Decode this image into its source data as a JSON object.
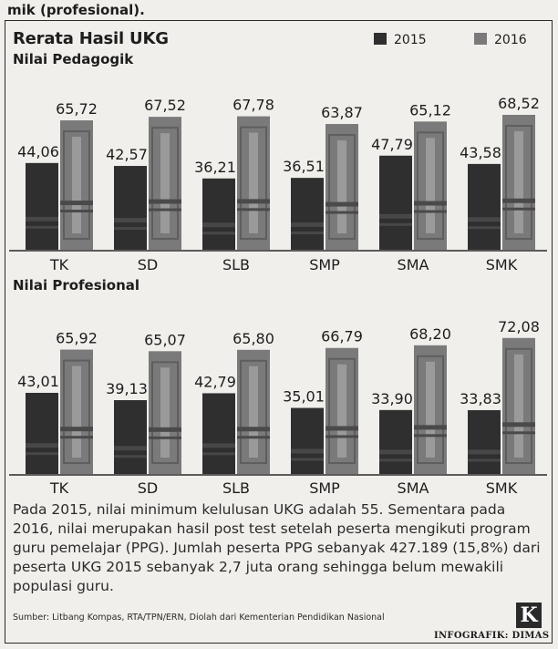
{
  "header": {
    "fragment": "mik (profesional).",
    "title": "Rerata Hasil UKG",
    "legend_2015": "2015",
    "legend_2016": "2016"
  },
  "colors": {
    "bar_2015": "#2f2f2f",
    "bar_2016": "#7a7a7a",
    "background": "#f1efeb"
  },
  "chart_data": [
    {
      "type": "bar",
      "title": "Nilai Pedagogik",
      "categories": [
        "TK",
        "SD",
        "SLB",
        "SMP",
        "SMA",
        "SMK"
      ],
      "series": [
        {
          "name": "2015",
          "values": [
            "44,06",
            "42,57",
            "36,21",
            "36,51",
            "47,79",
            "43,58"
          ]
        },
        {
          "name": "2016",
          "values": [
            "65,72",
            "67,52",
            "67,78",
            "63,87",
            "65,12",
            "68,52"
          ]
        }
      ],
      "grid": false
    },
    {
      "type": "bar",
      "title": "Nilai Profesional",
      "categories": [
        "TK",
        "SD",
        "SLB",
        "SMP",
        "SMA",
        "SMK"
      ],
      "series": [
        {
          "name": "2015",
          "values": [
            "43,01",
            "39,13",
            "42,79",
            "35,01",
            "33,90",
            "33,83"
          ]
        },
        {
          "name": "2016",
          "values": [
            "65,92",
            "65,07",
            "65,80",
            "66,79",
            "68,20",
            "72,08"
          ]
        }
      ],
      "grid": false
    }
  ],
  "note": "Pada 2015, nilai minimum kelulusan UKG adalah 55. Sementara pada 2016, nilai merupakan hasil post test setelah peserta mengikuti program guru pemelajar (PPG). Jumlah peserta PPG sebanyak 427.189 (15,8%) dari peserta UKG 2015 sebanyak 2,7 juta orang sehingga belum mewakili populasi guru.",
  "source": "Sumber: Litbang Kompas, RTA/TPN/ERN, Diolah dari Kementerian Pendidikan Nasional",
  "logo": "K",
  "credit": "INFOGRAFIK: DIMAS"
}
